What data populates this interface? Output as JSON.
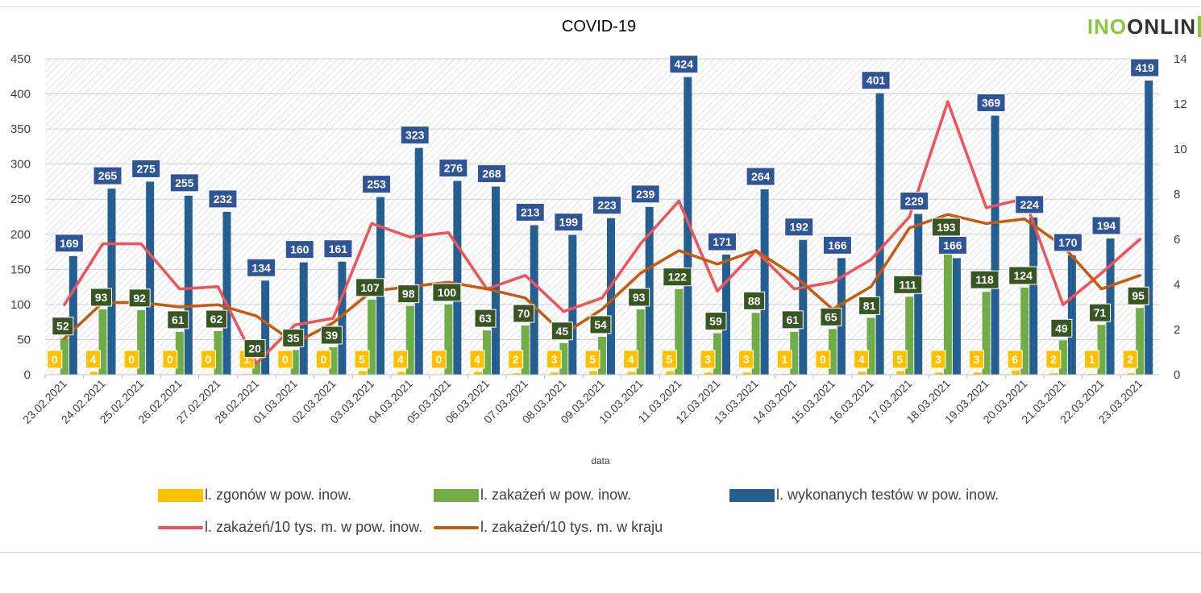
{
  "chart_data": {
    "type": "bar",
    "title": "COVID-19",
    "xlabel": "data",
    "ylabel": "",
    "y2label": "",
    "ylim": [
      0,
      450
    ],
    "y2lim": [
      0,
      14
    ],
    "yticks": [
      0,
      50,
      100,
      150,
      200,
      250,
      300,
      350,
      400,
      450
    ],
    "y2ticks": [
      0,
      2,
      4,
      6,
      8,
      10,
      12,
      14
    ],
    "grid": true,
    "legend_position": "bottom",
    "categories": [
      "23.02.2021",
      "24.02.2021",
      "25.02.2021",
      "26.02.2021",
      "27.02.2021",
      "28.02.2021",
      "01.03.2021",
      "02.03.2021",
      "03.03.2021",
      "04.03.2021",
      "05.03.2021",
      "06.03.2021",
      "07.03.2021",
      "08.03.2021",
      "09.03.2021",
      "10.03.2021",
      "11.03.2021",
      "12.03.2021",
      "13.03.2021",
      "14.03.2021",
      "15.03.2021",
      "16.03.2021",
      "17.03.2021",
      "18.03.2021",
      "19.03.2021",
      "20.03.2021",
      "21.03.2021",
      "22.03.2021",
      "23.03.2021"
    ],
    "series": [
      {
        "name": "l. zgonów w pow. inow.",
        "kind": "bar",
        "axis": "left",
        "color": "#ffc000",
        "label_bg": "#ffc000",
        "values": [
          0,
          4,
          0,
          0,
          0,
          1,
          0,
          0,
          5,
          4,
          0,
          4,
          2,
          3,
          5,
          4,
          5,
          3,
          3,
          1,
          0,
          4,
          5,
          3,
          3,
          6,
          2,
          1,
          2
        ]
      },
      {
        "name": "l. zakażeń w pow. inow.",
        "kind": "bar",
        "axis": "left",
        "color": "#70ad47",
        "label_bg": "#375623",
        "values": [
          52,
          93,
          92,
          61,
          62,
          20,
          35,
          39,
          107,
          98,
          100,
          63,
          70,
          45,
          54,
          93,
          122,
          59,
          88,
          61,
          65,
          81,
          111,
          193,
          118,
          124,
          49,
          71,
          95
        ]
      },
      {
        "name": "l. wykonanych testów w pow. inow.",
        "kind": "bar",
        "axis": "left",
        "color": "#255e91",
        "label_bg": "#2f5597",
        "values": [
          169,
          265,
          275,
          255,
          232,
          134,
          160,
          161,
          253,
          323,
          276,
          268,
          213,
          199,
          223,
          239,
          424,
          171,
          264,
          192,
          166,
          401,
          229,
          166,
          369,
          224,
          170,
          194,
          419
        ]
      },
      {
        "name": "l. zakażeń/10 tys. m. w pow. inow.",
        "kind": "line",
        "axis": "right",
        "color": "#f0525a",
        "values": [
          3.1,
          5.8,
          5.8,
          3.8,
          3.9,
          0.5,
          2.2,
          2.5,
          6.7,
          6.1,
          6.3,
          3.8,
          4.4,
          2.8,
          3.4,
          5.8,
          7.7,
          3.7,
          5.5,
          3.8,
          4.1,
          5.1,
          7.0,
          12.1,
          7.4,
          7.8,
          3.1,
          4.5,
          6.0
        ]
      },
      {
        "name": "l. zakażeń/10 tys. m. w kraju",
        "kind": "line",
        "axis": "right",
        "color": "#c55a11",
        "values": [
          1.6,
          3.2,
          3.2,
          3.0,
          3.1,
          2.6,
          1.4,
          2.3,
          3.7,
          3.9,
          4.1,
          3.8,
          3.4,
          1.8,
          2.9,
          4.5,
          5.5,
          4.9,
          5.5,
          4.4,
          2.9,
          3.9,
          6.5,
          7.1,
          6.7,
          6.9,
          5.7,
          3.8,
          4.4
        ]
      }
    ]
  },
  "logo": {
    "text_a": "INO",
    "text_b": "ONLIN"
  }
}
